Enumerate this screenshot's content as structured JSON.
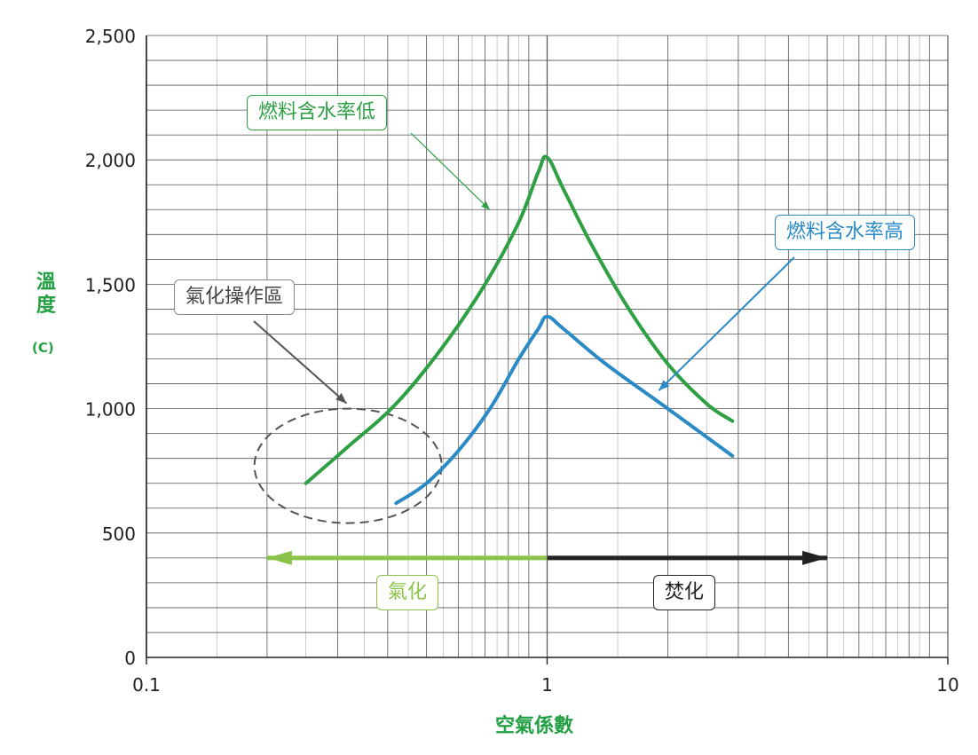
{
  "chart_data": {
    "type": "line",
    "xscale": "log",
    "xlim": [
      0.1,
      10
    ],
    "ylim": [
      0,
      2500
    ],
    "xticks": [
      "0.1",
      "1",
      "10"
    ],
    "yticks": [
      "0",
      "500",
      "1,000",
      "1,500",
      "2,000",
      "2,500"
    ],
    "xlabel": "空氣係數",
    "ylabel": "溫度",
    "ylabel_unit": "(C)",
    "grid": true,
    "series": [
      {
        "name": "燃料含水率低",
        "color": "#2ea043",
        "x": [
          0.25,
          0.32,
          0.42,
          0.55,
          0.7,
          0.85,
          0.95,
          1.0,
          1.1,
          1.3,
          1.6,
          2.0,
          2.5,
          2.9
        ],
        "y": [
          700,
          850,
          1020,
          1250,
          1500,
          1750,
          1950,
          2010,
          1880,
          1650,
          1400,
          1180,
          1020,
          950
        ]
      },
      {
        "name": "燃料含水率高",
        "color": "#2a8ac6",
        "x": [
          0.42,
          0.5,
          0.6,
          0.72,
          0.85,
          0.95,
          1.0,
          1.1,
          1.4,
          2.0,
          2.9
        ],
        "y": [
          620,
          700,
          830,
          1000,
          1200,
          1320,
          1370,
          1320,
          1180,
          1000,
          810
        ]
      }
    ],
    "regions": [
      {
        "label": "氣化",
        "from": 1.0,
        "to": 0.2,
        "y": 400,
        "color": "#8bc34a"
      },
      {
        "label": "焚化",
        "from": 1.0,
        "to": 5.0,
        "y": 400,
        "color": "#222222"
      }
    ],
    "annotations": [
      {
        "text": "燃料含水率低",
        "color": "#2ea043",
        "point": {
          "x": 0.72,
          "y": 1770
        }
      },
      {
        "text": "燃料含水率高",
        "color": "#2a8ac6",
        "point": {
          "x": 1.9,
          "y": 1080
        }
      },
      {
        "text": "氣化操作區",
        "color": "#555555",
        "point": {
          "x": 0.47,
          "y": 1000
        }
      }
    ],
    "ellipse": {
      "center_x": 0.37,
      "center_y": 780,
      "x_range": [
        0.25,
        0.54
      ],
      "y_range": [
        540,
        1000
      ]
    }
  }
}
